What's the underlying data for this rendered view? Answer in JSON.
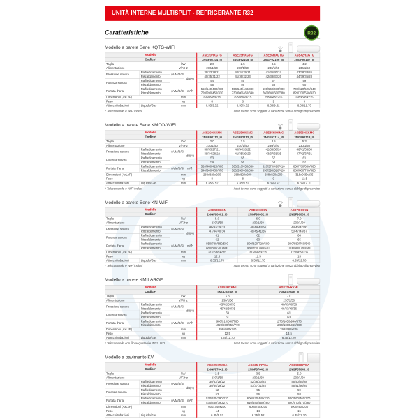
{
  "page": {
    "banner": "UNITÀ INTERNE MULTISPLIT - REFRIGERANTE R32",
    "section_title": "Caratteristiche",
    "badge": "R32",
    "disclaimer": "I dati tecnici sono soggetti a variazione senza obbligo di preavviso"
  },
  "labels": {
    "modello": "Modello",
    "codice": "Codice*",
    "taglia": "Taglia",
    "alimentazione": "Alimentazione",
    "pressione": "Pressione sonora",
    "potenza": "Potenza sonora",
    "portata": "Portata d'aria",
    "raffreddamento": "Raffreddamento",
    "riscaldamento": "Riscaldamento",
    "dimensioni": "Dimensioni (AxLxP)",
    "peso": "Peso",
    "attacchi": "Attacchi tubazioni",
    "liquido_gas": "Liquido/Gas",
    "speeds": "(A/M/B/SL)",
    "units": {
      "kw": "kW",
      "vfhz": "V/F/Hz",
      "dba": "dB(A)",
      "m3h": "m³/h",
      "mm": "mm",
      "kg": "kg"
    }
  },
  "tables": [
    {
      "title": "Modello a parete Serie KQTG-WIFI",
      "icons": [
        "wifi-icon",
        "remote-icon",
        "wall-unit-image"
      ],
      "footnote": "* Telecomando e WiFi inclusi",
      "codes_red": [
        "ASE20HXGTG",
        "ASE25HXGTG",
        "ASE35HXGTG",
        "ASE42HXGTG"
      ],
      "codes_bold": [
        "2NGF92104_I0",
        "2NGF92105_I0",
        "2NGF92106_I0",
        "2NGF92107_I0"
      ],
      "taglia": [
        "2.0",
        "2.5",
        "3.5",
        "4.2"
      ],
      "alimentazione": [
        "230/1/50",
        "230/1/50",
        "230/1/50",
        "230/1/50"
      ],
      "press_raff": [
        "39/33/28/21",
        "40/34/29/21",
        "41/36/30/24",
        "43/38/33/26"
      ],
      "press_risc": [
        "40/35/31/22",
        "41/36/32/23",
        "42/38/33/26",
        "44/39/35/28"
      ],
      "pot_raff": [
        "54",
        "55",
        "57",
        "59"
      ],
      "pot_risc": [
        "56",
        "56",
        "58",
        "60"
      ],
      "port_raff": [
        "550/540/430/370",
        "560/545/440/380",
        "600/560/470/400",
        "700/620/520/440"
      ],
      "port_risc": [
        "720/590/450/330",
        "730/600/460/340",
        "760/640/500/380",
        "820/700/560/420"
      ],
      "dimensioni": [
        "295x845x215",
        "295x845x215",
        "295x845x215",
        "295x845x215"
      ],
      "peso": [
        "8",
        "8",
        "9",
        "9"
      ],
      "attacchi": [
        "6.35/9.52",
        "6.35/9.52",
        "6.35/9.52",
        "6.35/12.70"
      ]
    },
    {
      "title": "Modello a parete Serie KMCO-WIFI",
      "icons": [
        "wifi-icon",
        "remote-icon",
        "wall-unit-image"
      ],
      "footnote": "* Telecomando e WiFi inclusi",
      "codes_red": [
        "ASE20HXKMC",
        "ASE25HXKMC",
        "ASE35HXKMC",
        "ASE53HXKMC"
      ],
      "codes_bold": [
        "2NGF92112_I0",
        "2NGF92113_I0",
        "2NGF92114_I0",
        "2NGF92118_I0"
      ],
      "taglia": [
        "2.0",
        "2.5",
        "3.5",
        "5.3"
      ],
      "alimentazione": [
        "230/1/50",
        "230/1/50",
        "230/1/50",
        "230/1/50"
      ],
      "press_raff": [
        "38/33/27/21",
        "40/34/28/22",
        "42/36/30/24",
        "46/41/36/30"
      ],
      "press_risc": [
        "39/34/28/22",
        "41/35/29/23",
        "43/37/31/25",
        "47/42/37/31"
      ],
      "pot_raff": [
        "53",
        "55",
        "57",
        "61"
      ],
      "pot_risc": [
        "54",
        "56",
        "58",
        "62"
      ],
      "port_raff": [
        "520/480/420/360",
        "560/510/450/380",
        "620/570/490/410",
        "850/780/680/560"
      ],
      "port_risc": [
        "540/500/430/370",
        "580/530/460/390",
        "650/590/510/420",
        "880/800/700/580"
      ],
      "dimensioni": [
        "288x820x200",
        "288x820x200",
        "288x820x200",
        "315x965x235"
      ],
      "peso": [
        "8",
        "8",
        "9",
        "12.5"
      ],
      "attacchi": [
        "6.35/9.52",
        "6.35/9.52",
        "6.35/9.52",
        "6.35/12.70"
      ]
    },
    {
      "title": "Modello a parete Serie KN-WIFI",
      "icons": [
        "wifi-icon",
        "remote-icon",
        "wall-unit-image"
      ],
      "footnote": "* Telecomando e WiFi inclusi",
      "codes_red": [
        "ASD50HXKN",
        "ASD60HXKN",
        "ASD70HXKN"
      ],
      "codes_bold": [
        "2NGF90001_I0",
        "2NGF90002_I0",
        "2NGF90003_I0"
      ],
      "taglia": [
        "5.0",
        "6.0",
        "7.0"
      ],
      "alimentazione": [
        "230/1/50",
        "230/1/50",
        "230/1/50"
      ],
      "press_raff": [
        "46/43/39/33",
        "48/44/40/34",
        "49/46/42/36"
      ],
      "press_risc": [
        "47/44/40/34",
        "49/45/41/35",
        "50/47/43/37"
      ],
      "pot_raff": [
        "61",
        "62",
        "64"
      ],
      "pot_risc": [
        "62",
        "63",
        "65"
      ],
      "port_raff": [
        "850/780/680/580",
        "900/820/720/600",
        "980/880/760/640"
      ],
      "port_risc": [
        "880/800/700/600",
        "930/850/740/620",
        "1000/900/780/660"
      ],
      "dimensioni": [
        "315x965x235",
        "315x965x235",
        "315x965x235"
      ],
      "peso": [
        "12.5",
        "12.5",
        "13"
      ],
      "attacchi": [
        "6.35/12.70",
        "6.35/12.70",
        "6.35/12.70"
      ]
    },
    {
      "title": "Modello a parete KM LARGE",
      "icons": [
        "remote-icon",
        "wall-unit-image"
      ],
      "footnote": "* Telecomando con filo acquistabile INCLUSO",
      "codes_red": [
        "ASE53HXKML",
        "ASE70HXKML"
      ],
      "codes_bold": [
        "2NGF92045_I0",
        "2NGF92046_I0"
      ],
      "taglia": [
        "5.3",
        "7.0"
      ],
      "alimentazione": [
        "230/1/50",
        "230/1/50"
      ],
      "press_raff": [
        "45/42/39/35",
        "46/43/40/36"
      ],
      "press_risc": [
        "45/42/39/35",
        "46/43/40/36"
      ],
      "pot_raff": [
        "59",
        "61"
      ],
      "pot_risc": [
        "61",
        "63"
      ],
      "port_raff": [
        "980/910/840/760",
        "1170/1050/940/870"
      ],
      "port_risc": [
        "1020/930/850/770",
        "1190/1080/960/880"
      ],
      "dimensioni": [
        "298x980x240",
        "298x980x240"
      ],
      "peso": [
        "12.5",
        "13.5"
      ],
      "attacchi": [
        "6.35/12.70",
        "6.35/12.70"
      ]
    },
    {
      "title": "Modello a pavimento KV",
      "icons": [
        "remote-icon",
        "floor-unit-image"
      ],
      "footnote": "* Telecomando con timer settimanale INCLUSO",
      "codes_red": [
        "AGE25HRVCA",
        "AGE35HRVCA",
        "AGE50HRVCA"
      ],
      "codes_bold": [
        "2NGF87041_I0",
        "2NGF87042_I0",
        "2NGF87043_I0"
      ],
      "taglia": [
        "2.5",
        "3.5",
        "5.0"
      ],
      "alimentazione": [
        "230/1/50",
        "230/1/50",
        "230/1/50"
      ],
      "press_raff": [
        "39/33/28/22",
        "42/36/30/24",
        "46/40/35/28"
      ],
      "press_risc": [
        "39/34/29/22",
        "43/37/31/25",
        "46/41/36/29"
      ],
      "pot_raff": [
        "52",
        "55",
        "59"
      ],
      "pot_risc": [
        "52",
        "56",
        "58"
      ],
      "port_raff": [
        "520/445/390/270",
        "600/530/440/270",
        "650/560/460/370"
      ],
      "port_risc": [
        "530/460/390/270",
        "610/540/450/280",
        "660/570/470/380"
      ],
      "dimensioni": [
        "600x740x200",
        "600x740x200",
        "600x740x200"
      ],
      "peso": [
        "14",
        "14",
        "15"
      ],
      "attacchi": [
        "6.35/9.52",
        "6.35/9.52",
        "6.35/12.70"
      ]
    }
  ]
}
